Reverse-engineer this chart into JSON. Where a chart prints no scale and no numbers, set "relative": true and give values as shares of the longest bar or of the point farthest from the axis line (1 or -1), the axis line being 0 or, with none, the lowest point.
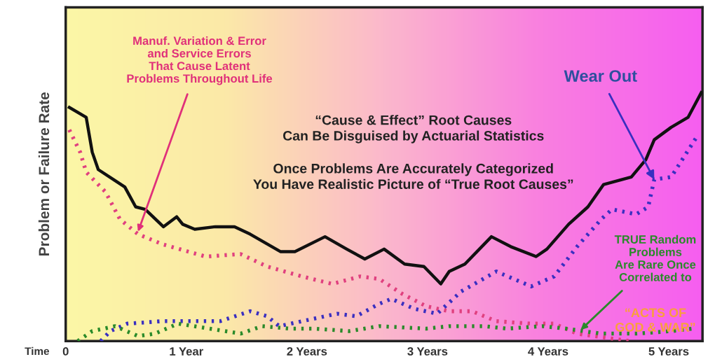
{
  "chart_data": {
    "type": "line",
    "relative": true,
    "xlabel": "Time",
    "ylabel": "Problem or Failure Rate",
    "xlim": [
      0,
      5.28
    ],
    "xticks": [
      0,
      {
        "value": 1,
        "label": "1 Year"
      },
      {
        "value": 2,
        "label": "2 Years"
      },
      {
        "value": 3,
        "label": "3 Years"
      },
      {
        "value": 4,
        "label": "4 Years"
      },
      {
        "value": 5,
        "label": "5 Years"
      }
    ],
    "grid": false,
    "marker": "none",
    "series": [
      {
        "color": "#111111",
        "line_style": "solid",
        "x": [
          0.03,
          0.17,
          0.22,
          0.27,
          0.49,
          0.58,
          0.66,
          0.81,
          0.92,
          0.97,
          1.07,
          1.24,
          1.4,
          1.53,
          1.78,
          1.9,
          2.15,
          2.33,
          2.48,
          2.64,
          2.81,
          2.97,
          3.11,
          3.18,
          3.31,
          3.53,
          3.69,
          3.9,
          3.99,
          4.17,
          4.33,
          4.46,
          4.69,
          4.81,
          4.88,
          5.02,
          5.16,
          5.27
        ],
        "values": [
          0.94,
          0.9,
          0.76,
          0.69,
          0.62,
          0.54,
          0.53,
          0.46,
          0.5,
          0.47,
          0.45,
          0.46,
          0.46,
          0.43,
          0.36,
          0.36,
          0.42,
          0.37,
          0.33,
          0.37,
          0.31,
          0.3,
          0.23,
          0.28,
          0.31,
          0.42,
          0.38,
          0.34,
          0.37,
          0.47,
          0.54,
          0.63,
          0.66,
          0.73,
          0.81,
          0.86,
          0.9,
          1.0
        ]
      },
      {
        "color": "#e0407f",
        "line_style": "dotted",
        "x": [
          0.03,
          0.12,
          0.17,
          0.33,
          0.45,
          0.6,
          0.8,
          1.16,
          1.45,
          1.67,
          1.96,
          2.21,
          2.44,
          2.6,
          2.79,
          2.99,
          3.18,
          3.37,
          3.57,
          3.86,
          4.05,
          4.24,
          4.53,
          4.68
        ],
        "values": [
          0.85,
          0.76,
          0.68,
          0.6,
          0.49,
          0.43,
          0.39,
          0.34,
          0.35,
          0.3,
          0.26,
          0.23,
          0.26,
          0.25,
          0.19,
          0.14,
          0.12,
          0.12,
          0.08,
          0.07,
          0.07,
          0.03,
          0.01,
          0
        ]
      },
      {
        "color": "#3a2fc0",
        "line_style": "dotted",
        "x": [
          0.29,
          0.37,
          0.51,
          0.8,
          1.07,
          1.28,
          1.53,
          1.67,
          1.77,
          1.96,
          2.25,
          2.41,
          2.6,
          2.7,
          2.89,
          3.08,
          3.28,
          3.57,
          3.86,
          4.05,
          4.24,
          4.44,
          4.53,
          4.73,
          4.83,
          4.88,
          5.02,
          5.23
        ],
        "values": [
          0,
          0.04,
          0.07,
          0.08,
          0.08,
          0.08,
          0.12,
          0.1,
          0.06,
          0.08,
          0.11,
          0.1,
          0.15,
          0.17,
          0.13,
          0.11,
          0.2,
          0.28,
          0.22,
          0.26,
          0.38,
          0.49,
          0.53,
          0.51,
          0.54,
          0.65,
          0.66,
          0.82
        ]
      },
      {
        "color": "#2a8a2a",
        "line_style": "dotted",
        "x": [
          0.1,
          0.22,
          0.41,
          0.6,
          0.74,
          0.93,
          1.19,
          1.45,
          1.63,
          1.86,
          2.06,
          2.35,
          2.6,
          2.99,
          3.18,
          3.47,
          3.66,
          3.95,
          4.15,
          4.44,
          4.73,
          5.02,
          5.2
        ],
        "values": [
          0,
          0.04,
          0.06,
          0.02,
          0.03,
          0.07,
          0.05,
          0.03,
          0.06,
          0.05,
          0.05,
          0.04,
          0.06,
          0.05,
          0.06,
          0.06,
          0.05,
          0.06,
          0.05,
          0.03,
          0.03,
          0.04,
          0.05
        ]
      }
    ],
    "annotations": [
      {
        "text": "Manuf. Variation & Error\nand Service Errors\nThat Cause Latent\nProblems Throughout Life",
        "x": 0.6,
        "y": 0.44
      },
      "“Cause & Effect” Root Causes\nCan Be Disguised by Actuarial Statistics",
      "Once Problems Are Accurately Categorized\nYou Have Realistic Picture of “True Root Causes”",
      {
        "text": "Wear Out",
        "x": 4.88,
        "y": 0.65
      },
      {
        "text": "TRUE Random\nProblems\nAre Rare Once\nCorrelated to",
        "x": 4.27,
        "y": 0.045
      },
      "“ACTS OF\nGOD & WAR”"
    ]
  }
}
